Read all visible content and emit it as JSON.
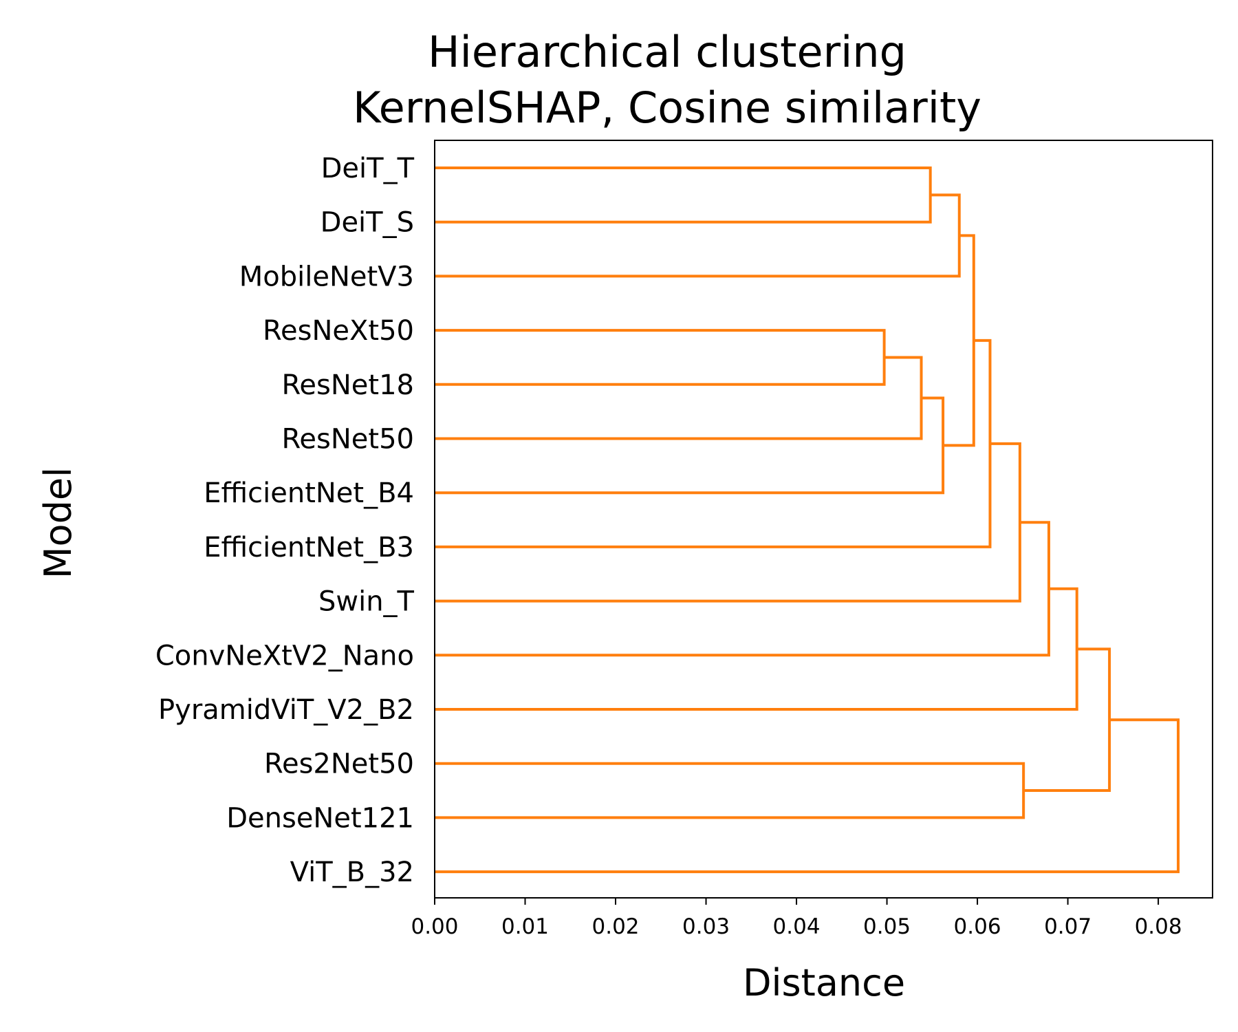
{
  "chart_data": {
    "type": "dendrogram",
    "title": "Hierarchical clustering",
    "subtitle": "KernelSHAP, Cosine similarity",
    "xlabel": "Distance",
    "ylabel": "Model",
    "xlim": [
      0,
      0.086
    ],
    "xticks": [
      "0.00",
      "0.01",
      "0.02",
      "0.03",
      "0.04",
      "0.05",
      "0.06",
      "0.07",
      "0.08"
    ],
    "xtick_values": [
      0,
      0.01,
      0.02,
      0.03,
      0.04,
      0.05,
      0.06,
      0.07,
      0.08
    ],
    "leaves": [
      "DeiT_T",
      "DeiT_S",
      "MobileNetV3",
      "ResNeXt50",
      "ResNet18",
      "ResNet50",
      "EfficientNet_B4",
      "EfficientNet_B3",
      "Swin_T",
      "ConvNeXtV2_Nano",
      "PyramidViT_V2_B2",
      "Res2Net50",
      "DenseNet121",
      "ViT_B_32"
    ],
    "merges": [
      {
        "left": "ResNeXt50",
        "right": "ResNet18",
        "distance": 0.0497
      },
      {
        "left": "c0",
        "right": "ResNet50",
        "distance": 0.0538
      },
      {
        "left": "DeiT_T",
        "right": "DeiT_S",
        "distance": 0.0548
      },
      {
        "left": "c1",
        "right": "EfficientNet_B4",
        "distance": 0.0562
      },
      {
        "left": "c2",
        "right": "MobileNetV3",
        "distance": 0.058
      },
      {
        "left": "c4",
        "right": "c3",
        "distance": 0.0596
      },
      {
        "left": "c5",
        "right": "EfficientNet_B3",
        "distance": 0.0614
      },
      {
        "left": "Res2Net50",
        "right": "DenseNet121",
        "distance": 0.0651
      },
      {
        "left": "c6",
        "right": "Swin_T",
        "distance": 0.0647
      },
      {
        "left": "c8",
        "right": "ConvNeXtV2_Nano",
        "distance": 0.0679
      },
      {
        "left": "c9",
        "right": "PyramidViT_V2_B2",
        "distance": 0.071
      },
      {
        "left": "c10",
        "right": "c7",
        "distance": 0.0746
      },
      {
        "left": "c11",
        "right": "ViT_B_32",
        "distance": 0.0822
      }
    ],
    "color": "#ff7f0e",
    "grid": false
  }
}
